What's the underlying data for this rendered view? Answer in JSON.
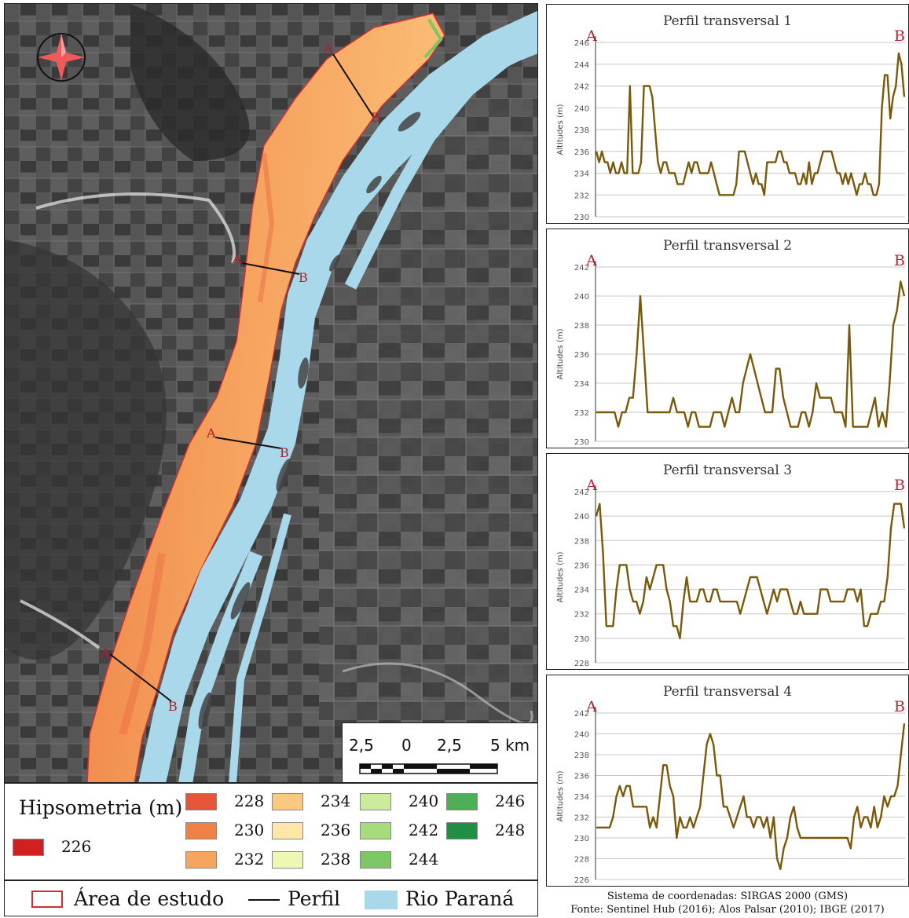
{
  "map": {
    "scale": {
      "labels": [
        "2,5",
        "0",
        "2,5",
        "5 km"
      ]
    },
    "profile_lines": [
      {
        "a": "A",
        "b": "B"
      },
      {
        "a": "A",
        "b": "B"
      },
      {
        "a": "A",
        "b": "B"
      },
      {
        "a": "A",
        "b": "B"
      }
    ],
    "north_arrow": "compass-rose-icon"
  },
  "legend": {
    "title": "Hipsometria (m)",
    "classes": [
      {
        "label": "226",
        "color": "#d21f1f"
      },
      {
        "label": "228",
        "color": "#e5553a"
      },
      {
        "label": "230",
        "color": "#ef8046"
      },
      {
        "label": "232",
        "color": "#f7a55e"
      },
      {
        "label": "234",
        "color": "#fbc880"
      },
      {
        "label": "236",
        "color": "#fde6a8"
      },
      {
        "label": "238",
        "color": "#eef7b4"
      },
      {
        "label": "240",
        "color": "#cdeb9c"
      },
      {
        "label": "242",
        "color": "#a8da7e"
      },
      {
        "label": "244",
        "color": "#7cc666"
      },
      {
        "label": "246",
        "color": "#4daf55"
      },
      {
        "label": "248",
        "color": "#1f8f46"
      }
    ],
    "study_area_label": "Área de estudo",
    "profile_label": "Perfil",
    "river_label": "Rio Paraná",
    "river_color": "#a8d8ea",
    "study_area_color": "#d23030"
  },
  "profiles": [
    {
      "title": "Perfil transversal 1",
      "ylabel": "Altitudes (m)",
      "start_label": "A",
      "end_label": "B",
      "ylim": [
        230,
        246
      ],
      "yticks": [
        230,
        232,
        234,
        236,
        238,
        240,
        242,
        244,
        246
      ],
      "values": [
        236,
        235,
        236,
        235,
        235,
        234,
        235,
        234,
        234,
        235,
        234,
        234,
        242,
        234,
        234,
        234,
        235,
        242,
        242,
        242,
        241,
        238,
        235,
        234,
        235,
        235,
        234,
        234,
        234,
        233,
        233,
        233,
        234,
        235,
        234,
        235,
        235,
        234,
        234,
        234,
        234,
        235,
        234,
        233,
        232,
        232,
        232,
        232,
        232,
        232,
        233,
        236,
        236,
        236,
        235,
        234,
        233,
        234,
        233,
        233,
        232,
        235,
        235,
        235,
        235,
        236,
        236,
        235,
        235,
        234,
        234,
        234,
        233,
        233,
        234,
        233,
        235,
        233,
        234,
        234,
        235,
        236,
        236,
        236,
        236,
        235,
        234,
        234,
        233,
        234,
        233,
        234,
        233,
        232,
        233,
        233,
        234,
        233,
        233,
        232,
        232,
        233,
        240,
        243,
        243,
        239,
        241,
        242,
        245,
        244,
        241
      ]
    },
    {
      "title": "Perfil transversal 2",
      "ylabel": "Altitudes (m)",
      "start_label": "A",
      "end_label": "B",
      "ylim": [
        230,
        242
      ],
      "yticks": [
        230,
        232,
        234,
        236,
        238,
        240,
        242
      ],
      "values": [
        232,
        232,
        232,
        232,
        232,
        232,
        231,
        232,
        232,
        233,
        233,
        236,
        240,
        236,
        232,
        232,
        232,
        232,
        232,
        232,
        232,
        233,
        232,
        232,
        232,
        231,
        232,
        232,
        231,
        231,
        231,
        231,
        232,
        232,
        232,
        231,
        232,
        233,
        232,
        232,
        234,
        235,
        236,
        235,
        234,
        233,
        232,
        232,
        232,
        235,
        235,
        233,
        232,
        231,
        231,
        231,
        232,
        232,
        231,
        232,
        234,
        233,
        233,
        233,
        233,
        232,
        232,
        232,
        231,
        238,
        231,
        231,
        231,
        231,
        231,
        232,
        233,
        231,
        232,
        231,
        234,
        238,
        239,
        241,
        240
      ]
    },
    {
      "title": "Perfil transversal 3",
      "ylabel": "Altitudes (m)",
      "start_label": "A",
      "end_label": "B",
      "ylim": [
        228,
        242
      ],
      "yticks": [
        228,
        230,
        232,
        234,
        236,
        238,
        240,
        242
      ],
      "values": [
        240,
        241,
        237,
        231,
        231,
        231,
        234,
        236,
        236,
        236,
        234,
        233,
        233,
        232,
        233,
        235,
        234,
        235,
        236,
        236,
        236,
        234,
        233,
        231,
        231,
        230,
        233,
        235,
        233,
        233,
        233,
        234,
        234,
        233,
        233,
        234,
        234,
        233,
        233,
        233,
        233,
        233,
        233,
        232,
        233,
        234,
        235,
        235,
        235,
        234,
        233,
        232,
        233,
        234,
        233,
        234,
        234,
        234,
        233,
        232,
        232,
        233,
        232,
        232,
        232,
        232,
        232,
        234,
        234,
        234,
        233,
        233,
        233,
        233,
        233,
        234,
        234,
        234,
        233,
        234,
        231,
        231,
        232,
        232,
        232,
        233,
        233,
        235,
        239,
        241,
        241,
        241,
        239
      ]
    },
    {
      "title": "Perfil transversal 4",
      "ylabel": "Altitudes (m)",
      "start_label": "A",
      "end_label": "B",
      "ylim": [
        226,
        242
      ],
      "yticks": [
        226,
        228,
        230,
        232,
        234,
        236,
        238,
        240,
        242
      ],
      "values": [
        231,
        231,
        231,
        231,
        231,
        232,
        234,
        235,
        234,
        235,
        235,
        233,
        233,
        233,
        233,
        233,
        231,
        232,
        231,
        234,
        237,
        237,
        235,
        234,
        230,
        232,
        231,
        231,
        232,
        231,
        232,
        233,
        236,
        239,
        240,
        239,
        236,
        236,
        233,
        233,
        232,
        231,
        232,
        233,
        234,
        232,
        232,
        231,
        232,
        232,
        231,
        232,
        230,
        232,
        228,
        227,
        229,
        230,
        232,
        233,
        231,
        230,
        230,
        230,
        230,
        230,
        230,
        230,
        230,
        230,
        230,
        230,
        230,
        230,
        230,
        230,
        229,
        232,
        233,
        231,
        232,
        232,
        231,
        233,
        231,
        232,
        234,
        233,
        234,
        234,
        235,
        238,
        241
      ]
    }
  ],
  "credits": {
    "line1": "Sistema de coordenadas:  SIRGAS 2000 (GMS)",
    "line2": "Fonte: Sentinel Hub (2016); Alos Palsar (2010); IBGE (2017)"
  }
}
